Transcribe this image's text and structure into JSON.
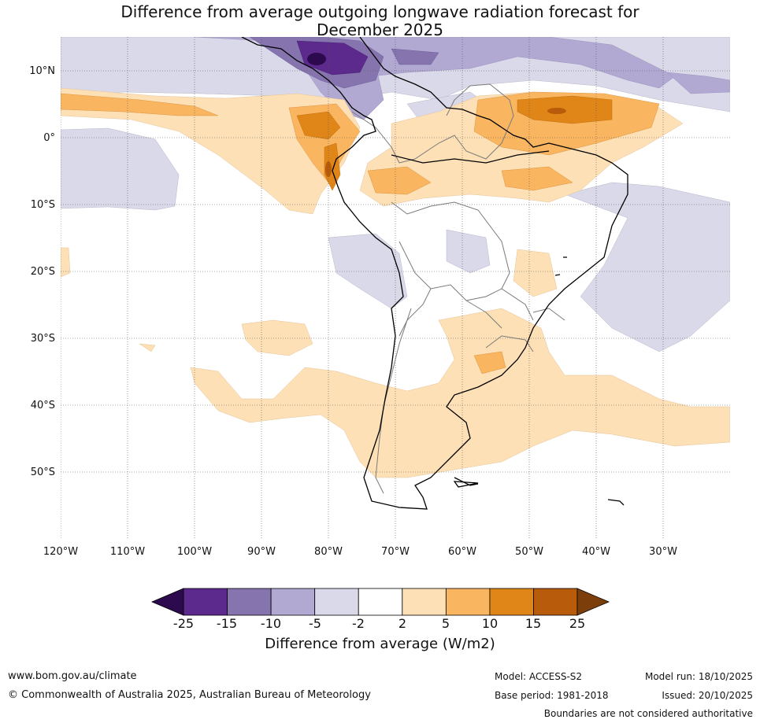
{
  "title": {
    "line1": "Difference from average outgoing longwave radiation forecast for",
    "line2": "December 2025"
  },
  "axes": {
    "lat_labels": [
      "10°N",
      "0°",
      "10°S",
      "20°S",
      "30°S",
      "40°S",
      "50°S"
    ],
    "lon_labels": [
      "120°W",
      "110°W",
      "100°W",
      "90°W",
      "80°W",
      "70°W",
      "60°W",
      "50°W",
      "40°W",
      "30°W"
    ]
  },
  "colorbar": {
    "title": "Difference from average (W/m2)",
    "ticks": [
      "-25",
      "-15",
      "-10",
      "-5",
      "-2",
      "2",
      "5",
      "10",
      "15",
      "25"
    ],
    "colors": {
      "lt_min25": "#2d0a4e",
      "min25_min15": "#5b2a8c",
      "min15_min10": "#8574ad",
      "min10_min5": "#b1a9d2",
      "min5_min2": "#d9d9ea",
      "min2_2": "#ffffff",
      "p2_p5": "#fde0b5",
      "p5_p10": "#f9b560",
      "p10_p15": "#e08618",
      "p15_p25": "#b85b0a",
      "gt_25": "#7c3e0b"
    }
  },
  "footer": {
    "website": "www.bom.gov.au/climate",
    "copyright": "© Commonwealth of Australia 2025, Australian Bureau of Meteorology",
    "model": "Model: ACCESS-S2",
    "base_period": "Base period: 1981-2018",
    "model_run": "Model run: 18/10/2025",
    "issued": "Issued: 20/10/2025",
    "disclaimer": "Boundaries are not considered authoritative"
  }
}
